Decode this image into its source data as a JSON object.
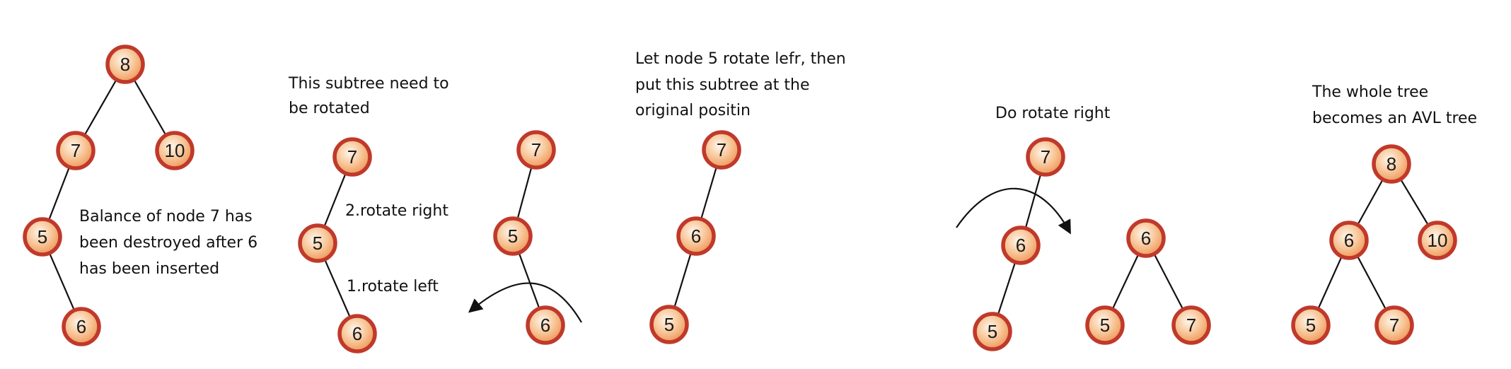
{
  "colors": {
    "node_fill_inner": "#fff6ea",
    "node_fill_outer": "#f2a66a",
    "node_border": "#c0392b",
    "edge": "#111111",
    "text": "#111111"
  },
  "panels": [
    {
      "id": "p1",
      "caption": [
        "Balance of node 7 has",
        "been destroyed after 6",
        "has been inserted"
      ],
      "nodes": [
        "8",
        "7",
        "10",
        "5",
        "6"
      ]
    },
    {
      "id": "p2",
      "caption": [
        "This subtree need to",
        "be rotated"
      ],
      "nodes": [
        "7",
        "5",
        "6"
      ],
      "annotations": [
        "2.rotate right",
        "1.rotate left"
      ]
    },
    {
      "id": "p3",
      "nodes": [
        "7",
        "5",
        "6"
      ]
    },
    {
      "id": "p4",
      "caption": [
        "Let node 5 rotate lefr, then",
        "put this subtree at the",
        "original positin"
      ],
      "nodes": [
        "7",
        "6",
        "5"
      ]
    },
    {
      "id": "p5",
      "caption": [
        "Do rotate right"
      ],
      "nodes": [
        "7",
        "6",
        "5"
      ]
    },
    {
      "id": "p6",
      "nodes": [
        "6",
        "5",
        "7"
      ]
    },
    {
      "id": "p7",
      "caption": [
        "The whole tree",
        "becomes an AVL tree"
      ],
      "nodes": [
        "8",
        "6",
        "10",
        "5",
        "7"
      ]
    }
  ]
}
